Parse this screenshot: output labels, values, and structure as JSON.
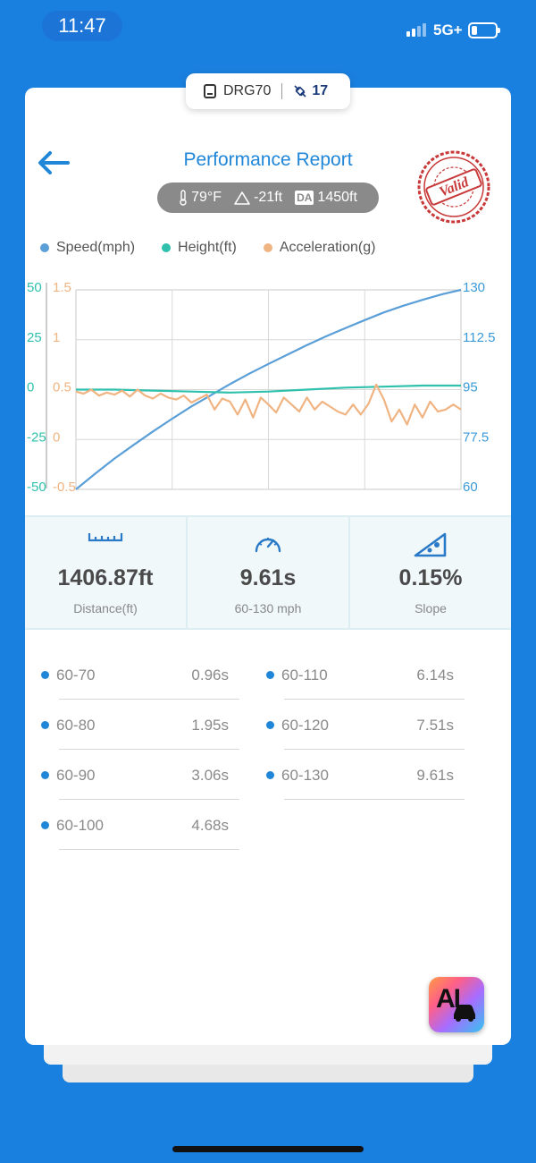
{
  "status_bar": {
    "time": "11:47",
    "network": "5G+"
  },
  "device": {
    "name": "DRG70",
    "satellites": "17"
  },
  "header": {
    "title": "Performance Report",
    "back_icon": "back-arrow-icon",
    "stamp_text": "Valid"
  },
  "conditions": {
    "temperature": "79°F",
    "elevation": "-21ft",
    "da_label": "DA",
    "density_altitude": "1450ft"
  },
  "legend": [
    {
      "label": "Speed(mph)",
      "color": "#5a9fd8"
    },
    {
      "label": "Height(ft)",
      "color": "#2fc1ad"
    },
    {
      "label": "Acceleration(g)",
      "color": "#f0b483"
    }
  ],
  "chart_data": {
    "type": "line",
    "series": [
      {
        "name": "Speed(mph)",
        "axis": "right",
        "color": "#5a9fd8",
        "x": [
          0,
          0.05,
          0.1,
          0.15,
          0.2,
          0.25,
          0.3,
          0.35,
          0.4,
          0.45,
          0.5,
          0.55,
          0.6,
          0.65,
          0.7,
          0.75,
          0.8,
          0.85,
          0.9,
          0.95,
          1.0
        ],
        "values": [
          60,
          65.5,
          70.8,
          75.6,
          80.3,
          84.8,
          89.1,
          93.0,
          96.9,
          100.6,
          104.0,
          107.3,
          110.6,
          113.7,
          116.6,
          119.4,
          122.1,
          124.4,
          126.5,
          128.4,
          130
        ]
      },
      {
        "name": "Height(ft)",
        "axis": "left",
        "color": "#2fc1ad",
        "x": [
          0,
          0.1,
          0.2,
          0.3,
          0.4,
          0.5,
          0.6,
          0.7,
          0.8,
          0.9,
          1.0
        ],
        "values": [
          0,
          0,
          -0.5,
          -1,
          -1.5,
          -1,
          0,
          1,
          1.5,
          2,
          2
        ]
      },
      {
        "name": "Acceleration(g)",
        "axis": "left_inner",
        "color": "#f0b483",
        "x": [
          0,
          0.02,
          0.04,
          0.06,
          0.08,
          0.1,
          0.12,
          0.14,
          0.16,
          0.18,
          0.2,
          0.22,
          0.24,
          0.26,
          0.28,
          0.3,
          0.32,
          0.34,
          0.36,
          0.38,
          0.4,
          0.42,
          0.44,
          0.46,
          0.48,
          0.5,
          0.52,
          0.54,
          0.56,
          0.58,
          0.6,
          0.62,
          0.64,
          0.66,
          0.68,
          0.7,
          0.72,
          0.74,
          0.76,
          0.78,
          0.8,
          0.82,
          0.84,
          0.86,
          0.88,
          0.9,
          0.92,
          0.94,
          0.96,
          0.98,
          1.0
        ],
        "values": [
          0.48,
          0.46,
          0.5,
          0.44,
          0.47,
          0.45,
          0.49,
          0.43,
          0.5,
          0.44,
          0.41,
          0.46,
          0.42,
          0.4,
          0.44,
          0.37,
          0.41,
          0.45,
          0.3,
          0.41,
          0.38,
          0.25,
          0.4,
          0.22,
          0.42,
          0.35,
          0.27,
          0.42,
          0.35,
          0.28,
          0.42,
          0.3,
          0.38,
          0.33,
          0.28,
          0.25,
          0.35,
          0.25,
          0.36,
          0.55,
          0.4,
          0.18,
          0.3,
          0.15,
          0.35,
          0.22,
          0.38,
          0.28,
          0.3,
          0.35,
          0.3
        ]
      }
    ],
    "left_ticks": [
      "50",
      "25",
      "0",
      "-25",
      "-50"
    ],
    "left_inner_ticks": [
      "1.5",
      "1",
      "0.5",
      "0",
      "-0.5"
    ],
    "right_ticks": [
      "130",
      "112.5",
      "95",
      "77.5",
      "60"
    ],
    "left_range": [
      -50,
      50
    ],
    "left_inner_range": [
      -0.5,
      1.5
    ],
    "right_range": [
      60,
      130
    ],
    "grid": true
  },
  "stats": [
    {
      "value": "1406.87ft",
      "label": "Distance(ft)",
      "icon": "ruler-icon"
    },
    {
      "value": "9.61s",
      "label": "60-130 mph",
      "icon": "speedometer-icon"
    },
    {
      "value": "0.15%",
      "label": "Slope",
      "icon": "slope-icon"
    }
  ],
  "splits": [
    {
      "range": "60-70",
      "time": "0.96s"
    },
    {
      "range": "60-80",
      "time": "1.95s"
    },
    {
      "range": "60-90",
      "time": "3.06s"
    },
    {
      "range": "60-100",
      "time": "4.68s"
    },
    {
      "range": "60-110",
      "time": "6.14s"
    },
    {
      "range": "60-120",
      "time": "7.51s"
    },
    {
      "range": "60-130",
      "time": "9.61s"
    }
  ],
  "ai_button": {
    "label": "AI"
  }
}
